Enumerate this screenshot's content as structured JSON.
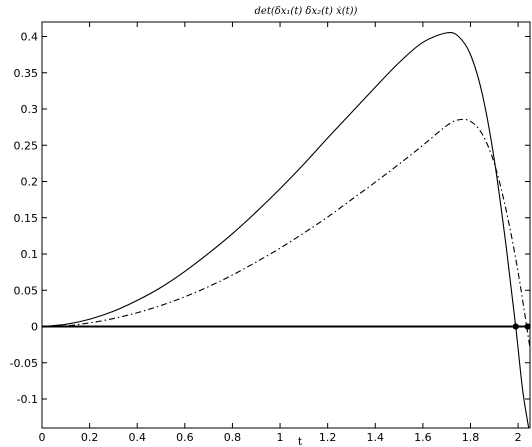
{
  "chart_data": {
    "type": "line",
    "title": "det(δx₁(t) δx₂(t) ẋ(t))",
    "xlabel": "t",
    "ylabel": "",
    "xlim": [
      0,
      2.05
    ],
    "ylim": [
      -0.14,
      0.42
    ],
    "xticks": [
      0,
      0.2,
      0.4,
      0.6,
      0.8,
      1,
      1.2,
      1.4,
      1.6,
      1.8,
      2
    ],
    "xtick_labels": [
      "0",
      "0.2",
      "0.4",
      "0.6",
      "0.8",
      "1",
      "1.2",
      "1.4",
      "1.6",
      "1.8",
      "2"
    ],
    "yticks": [
      -0.1,
      -0.05,
      0,
      0.05,
      0.1,
      0.15,
      0.2,
      0.25,
      0.3,
      0.35,
      0.4
    ],
    "ytick_labels": [
      "-0.1",
      "-0.05",
      "0",
      "0.05",
      "0.1",
      "0.15",
      "0.2",
      "0.25",
      "0.3",
      "0.35",
      "0.4"
    ],
    "grid": false,
    "series": [
      {
        "style": "solid",
        "x": [
          0,
          0.1,
          0.2,
          0.3,
          0.4,
          0.5,
          0.6,
          0.7,
          0.8,
          0.9,
          1.0,
          1.1,
          1.2,
          1.3,
          1.4,
          1.5,
          1.6,
          1.7,
          1.75,
          1.8,
          1.85,
          1.9,
          1.95,
          1.99,
          2.02,
          2.05
        ],
        "y": [
          0,
          0.003,
          0.01,
          0.021,
          0.036,
          0.054,
          0.076,
          0.101,
          0.128,
          0.158,
          0.19,
          0.224,
          0.26,
          0.295,
          0.33,
          0.364,
          0.392,
          0.405,
          0.4,
          0.375,
          0.32,
          0.23,
          0.11,
          0.0,
          -0.09,
          -0.15
        ]
      },
      {
        "style": "dashdot",
        "x": [
          0,
          0.1,
          0.2,
          0.3,
          0.4,
          0.5,
          0.6,
          0.7,
          0.8,
          0.9,
          1.0,
          1.1,
          1.2,
          1.3,
          1.4,
          1.5,
          1.6,
          1.7,
          1.75,
          1.8,
          1.85,
          1.9,
          1.95,
          2.0,
          2.05
        ],
        "y": [
          0,
          0.001,
          0.005,
          0.011,
          0.019,
          0.029,
          0.041,
          0.055,
          0.071,
          0.089,
          0.108,
          0.129,
          0.151,
          0.175,
          0.199,
          0.224,
          0.25,
          0.277,
          0.285,
          0.283,
          0.265,
          0.225,
          0.16,
          0.075,
          -0.03
        ]
      }
    ],
    "markers": [
      {
        "x": 1.99,
        "y": 0
      },
      {
        "x": 2.04,
        "y": 0
      }
    ],
    "zero_line": true
  }
}
